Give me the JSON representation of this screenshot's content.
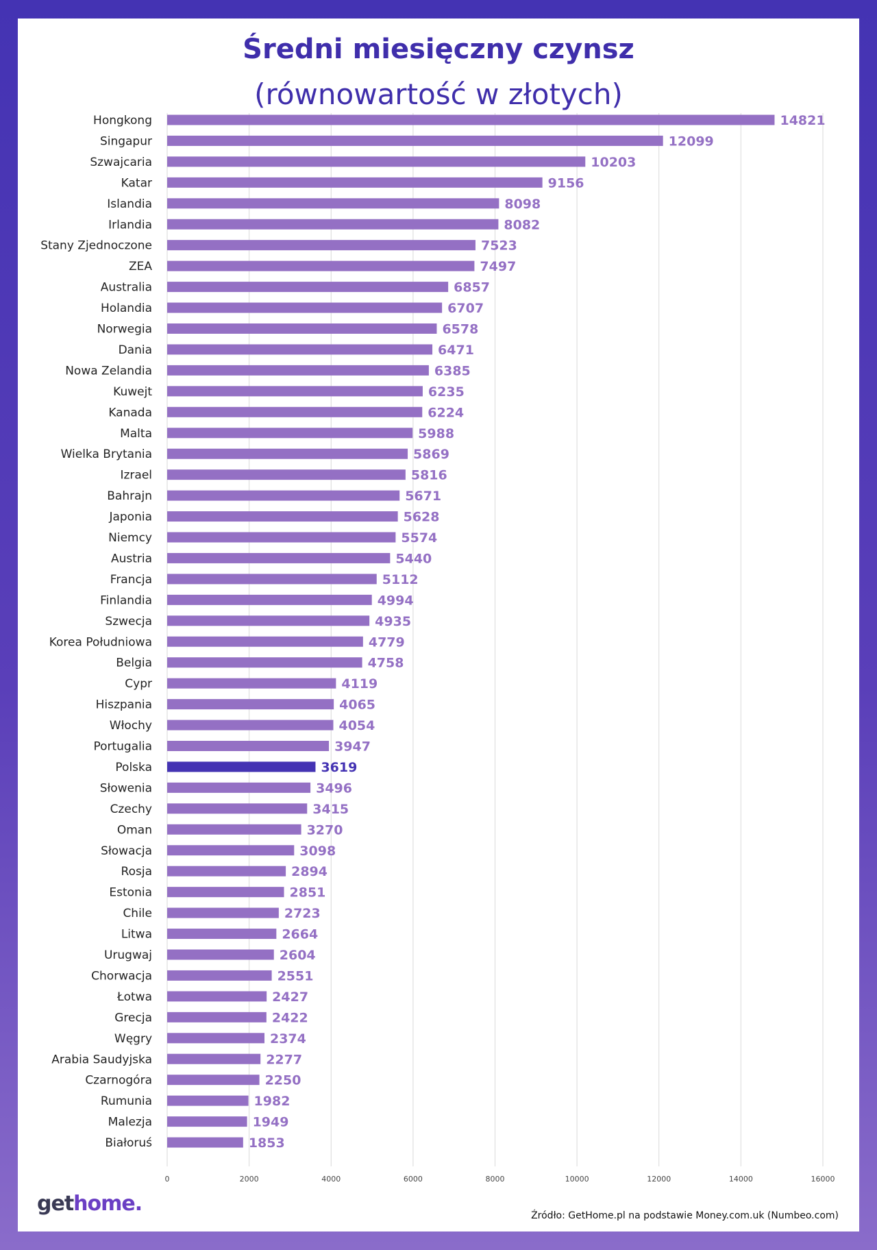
{
  "title": "Średni miesięczny czynsz",
  "subtitle": "(równowartość w złotych)",
  "logo": {
    "part1": "get",
    "part2": "home",
    "dot": "."
  },
  "source": "Źródło: GetHome.pl na podstawie Money.com.uk  (Numbeo.com)",
  "colors": {
    "bar": "#9470c4",
    "bar_highlight": "#4433b3",
    "label": "#9470c4",
    "label_highlight": "#4433b3",
    "title": "#3f2eab",
    "grid": "#d9d9d9"
  },
  "chart_data": {
    "type": "bar",
    "orientation": "horizontal",
    "title": "Średni miesięczny czynsz",
    "subtitle": "(równowartość w złotych)",
    "xlim": [
      0,
      16000
    ],
    "xticks": [
      0,
      2000,
      4000,
      6000,
      8000,
      10000,
      12000,
      14000,
      16000
    ],
    "grid": true,
    "highlight": "Polska",
    "categories": [
      "Hongkong",
      "Singapur",
      "Szwajcaria",
      "Katar",
      "Islandia",
      "Irlandia",
      "Stany Zjednoczone",
      "ZEA",
      "Australia",
      "Holandia",
      "Norwegia",
      "Dania",
      "Nowa Zelandia",
      "Kuwejt",
      "Kanada",
      "Malta",
      "Wielka Brytania",
      "Izrael",
      "Bahrajn",
      "Japonia",
      "Niemcy",
      "Austria",
      "Francja",
      "Finlandia",
      "Szwecja",
      "Korea Południowa",
      "Belgia",
      "Cypr",
      "Hiszpania",
      "Włochy",
      "Portugalia",
      "Polska",
      "Słowenia",
      "Czechy",
      "Oman",
      "Słowacja",
      "Rosja",
      "Estonia",
      "Chile",
      "Litwa",
      "Urugwaj",
      "Chorwacja",
      "Łotwa",
      "Grecja",
      "Węgry",
      "Arabia Saudyjska",
      "Czarnogóra",
      "Rumunia",
      "Malezja",
      "Białoruś"
    ],
    "values": [
      14821,
      12099,
      10203,
      9156,
      8098,
      8082,
      7523,
      7497,
      6857,
      6707,
      6578,
      6471,
      6385,
      6235,
      6224,
      5988,
      5869,
      5816,
      5671,
      5628,
      5574,
      5440,
      5112,
      4994,
      4935,
      4779,
      4758,
      4119,
      4065,
      4054,
      3947,
      3619,
      3496,
      3415,
      3270,
      3098,
      2894,
      2851,
      2723,
      2664,
      2604,
      2551,
      2427,
      2422,
      2374,
      2277,
      2250,
      1982,
      1949,
      1853
    ]
  }
}
